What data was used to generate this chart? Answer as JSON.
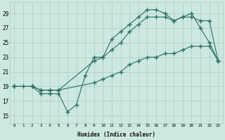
{
  "bg_color": "#cce8e0",
  "grid_color": "#aaccC4",
  "line_color": "#2d6e65",
  "xlabel": "Humidex (Indice chaleur)",
  "xlim": [
    -0.5,
    23.5
  ],
  "ylim": [
    14.0,
    30.5
  ],
  "yticks": [
    15,
    17,
    19,
    21,
    23,
    25,
    27,
    29
  ],
  "xticks": [
    0,
    1,
    2,
    3,
    4,
    5,
    6,
    7,
    8,
    9,
    10,
    11,
    12,
    13,
    14,
    15,
    16,
    17,
    18,
    19,
    20,
    21,
    22,
    23
  ],
  "line1_x": [
    0,
    1,
    2,
    3,
    4,
    5,
    6,
    7,
    8,
    9,
    10,
    11,
    12,
    13,
    14,
    15,
    16,
    17,
    18,
    19,
    20,
    21,
    22,
    23
  ],
  "line1_y": [
    19,
    19,
    19,
    18,
    18,
    18,
    15.5,
    16.5,
    20.5,
    23,
    23,
    25.5,
    26.5,
    27.5,
    28.5,
    29.5,
    29.5,
    29,
    28,
    28.5,
    29,
    27,
    25,
    22.5
  ],
  "line2_x": [
    0,
    2,
    3,
    4,
    5,
    9,
    10,
    11,
    12,
    13,
    14,
    15,
    16,
    17,
    18,
    19,
    20,
    21,
    22,
    23
  ],
  "line2_y": [
    19,
    19,
    18.5,
    18.5,
    18.5,
    22.5,
    23,
    24,
    25,
    26.5,
    27.5,
    28.5,
    28.5,
    28.5,
    28,
    28.5,
    28.5,
    28,
    28,
    22.5
  ],
  "line3_x": [
    0,
    2,
    3,
    4,
    5,
    9,
    10,
    11,
    12,
    13,
    14,
    15,
    16,
    17,
    18,
    19,
    20,
    21,
    22,
    23
  ],
  "line3_y": [
    19,
    19,
    18.5,
    18.5,
    18.5,
    19.5,
    20,
    20.5,
    21,
    22,
    22.5,
    23,
    23,
    23.5,
    23.5,
    24,
    24.5,
    24.5,
    24.5,
    22.5
  ]
}
